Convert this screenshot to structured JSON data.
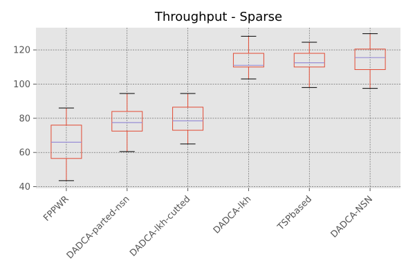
{
  "chart_data": {
    "type": "box",
    "title": "Throughput - Sparse",
    "xlabel": "",
    "ylabel": "",
    "ylim": [
      39,
      133
    ],
    "yticks": [
      40,
      60,
      80,
      100,
      120
    ],
    "grid": true,
    "categories": [
      "FPPWR",
      "DADCA-parted-nsn",
      "DADCA-lkh-cutted",
      "DADCA-lkh",
      "TSPbased",
      "DADCA-NSN"
    ],
    "boxes": [
      {
        "whisker_low": 43.5,
        "q1": 56.5,
        "median": 66,
        "q3": 76,
        "whisker_high": 86
      },
      {
        "whisker_low": 60.5,
        "q1": 72.5,
        "median": 77.5,
        "q3": 84,
        "whisker_high": 94.5
      },
      {
        "whisker_low": 65,
        "q1": 73,
        "median": 78.5,
        "q3": 86.5,
        "whisker_high": 94.5
      },
      {
        "whisker_low": 103,
        "q1": 110,
        "median": 111,
        "q3": 118,
        "whisker_high": 128
      },
      {
        "whisker_low": 98,
        "q1": 110,
        "median": 112.5,
        "q3": 118,
        "whisker_high": 124.5
      },
      {
        "whisker_low": 97.5,
        "q1": 108.5,
        "median": 115.5,
        "q3": 120.5,
        "whisker_high": 129.5
      }
    ],
    "colors": {
      "box": "#E24A33",
      "median": "#8EBA42",
      "median_alt": "#988ED5",
      "whisker_cap": "#000000",
      "background": "#E5E5E5",
      "grid": "#555555"
    }
  }
}
